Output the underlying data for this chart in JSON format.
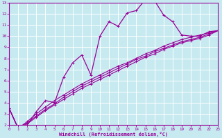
{
  "xlabel": "Windchill (Refroidissement éolien,°C)",
  "bg_color": "#c6eaf0",
  "grid_color": "#aad4dc",
  "line_color": "#990099",
  "x_hours": [
    0,
    1,
    2,
    3,
    4,
    5,
    6,
    7,
    8,
    9,
    10,
    11,
    12,
    13,
    14,
    15,
    16,
    17,
    18,
    19,
    20,
    21,
    22,
    23
  ],
  "windchill_main": [
    3.5,
    1.7,
    2.0,
    3.2,
    4.2,
    4.0,
    6.3,
    7.6,
    8.3,
    6.5,
    10.0,
    11.3,
    10.9,
    12.1,
    12.3,
    13.3,
    13.2,
    11.9,
    11.3,
    10.1,
    10.0,
    10.0,
    10.4,
    10.5
  ],
  "linear1": [
    3.5,
    1.7,
    2.3,
    3.0,
    3.6,
    4.2,
    4.7,
    5.2,
    5.7,
    6.1,
    6.5,
    6.9,
    7.3,
    7.6,
    8.0,
    8.4,
    8.7,
    9.1,
    9.4,
    9.7,
    9.9,
    10.1,
    10.3,
    10.5
  ],
  "linear2": [
    3.5,
    1.7,
    2.2,
    2.8,
    3.4,
    3.9,
    4.5,
    5.0,
    5.5,
    5.9,
    6.3,
    6.7,
    7.1,
    7.5,
    7.9,
    8.2,
    8.6,
    8.9,
    9.2,
    9.5,
    9.7,
    9.9,
    10.2,
    10.5
  ],
  "linear3": [
    3.5,
    1.7,
    2.1,
    2.7,
    3.3,
    3.8,
    4.3,
    4.8,
    5.3,
    5.7,
    6.1,
    6.5,
    6.9,
    7.3,
    7.7,
    8.1,
    8.4,
    8.8,
    9.1,
    9.4,
    9.6,
    9.8,
    10.1,
    10.5
  ],
  "ylim": [
    2,
    13
  ],
  "xlim": [
    0,
    23
  ],
  "yticks": [
    2,
    3,
    4,
    5,
    6,
    7,
    8,
    9,
    10,
    11,
    12,
    13
  ],
  "xticks": [
    0,
    1,
    2,
    3,
    4,
    5,
    6,
    7,
    8,
    9,
    10,
    11,
    12,
    13,
    14,
    15,
    16,
    17,
    18,
    19,
    20,
    21,
    22,
    23
  ]
}
